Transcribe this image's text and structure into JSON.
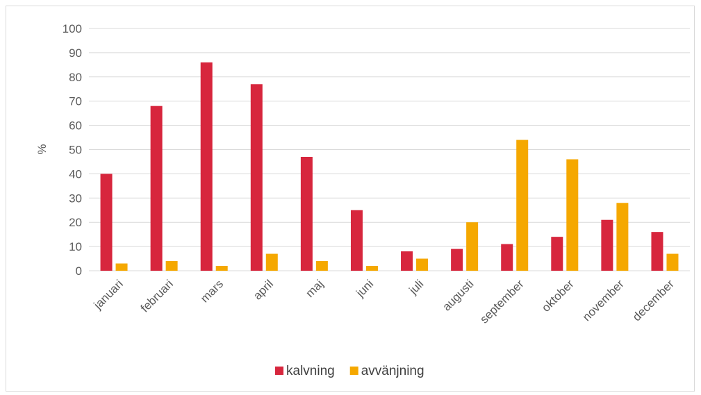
{
  "chart_data": {
    "type": "bar",
    "categories": [
      "januari",
      "februari",
      "mars",
      "april",
      "maj",
      "juni",
      "juli",
      "augusti",
      "september",
      "oktober",
      "november",
      "december"
    ],
    "series": [
      {
        "name": "kalvning",
        "color": "#d7263d",
        "values": [
          40,
          68,
          86,
          77,
          47,
          25,
          8,
          9,
          11,
          14,
          21,
          16
        ]
      },
      {
        "name": "avvänjning",
        "color": "#f5a800",
        "values": [
          3,
          4,
          2,
          7,
          4,
          2,
          5,
          20,
          54,
          46,
          28,
          7
        ]
      }
    ],
    "ylabel": "%",
    "ylim": [
      0,
      100
    ],
    "yticks": [
      0,
      10,
      20,
      30,
      40,
      50,
      60,
      70,
      80,
      90,
      100
    ],
    "grid": true,
    "legend_position": "bottom-center",
    "gridline_color": "#d9d9d9"
  }
}
